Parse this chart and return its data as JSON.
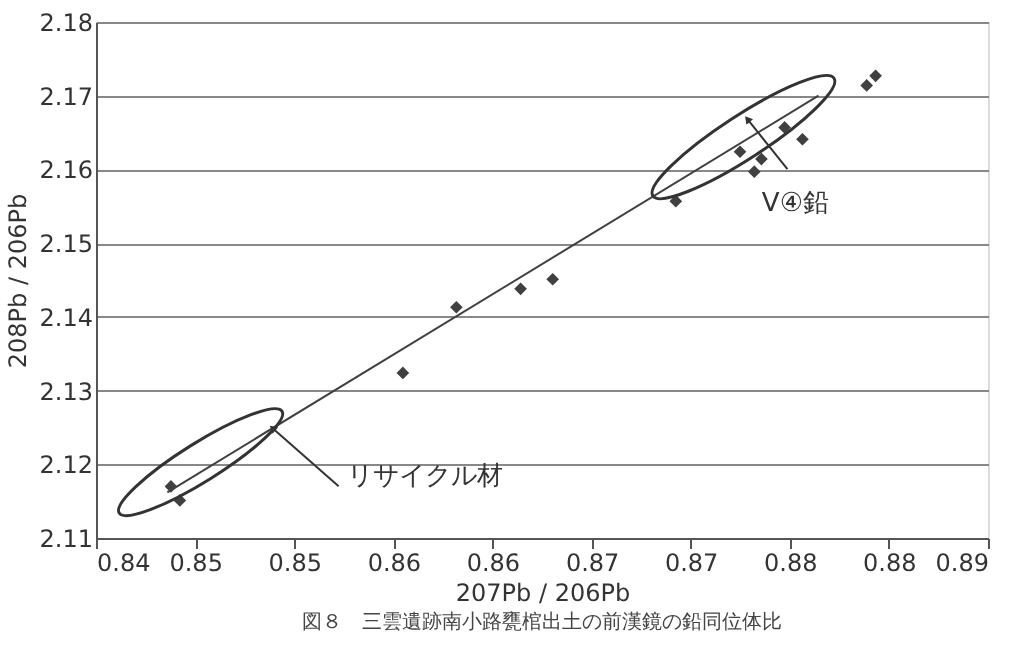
{
  "chart_data": {
    "type": "scatter",
    "xlabel": "207Pb / 206Pb",
    "ylabel": "208Pb / 206Pb",
    "series": [
      {
        "color": "#404040",
        "marker": "diamond",
        "x": [
          0.8442,
          0.8447,
          0.8572,
          0.8602,
          0.8638,
          0.8656,
          0.8725,
          0.8761,
          0.8769,
          0.8773,
          0.8786,
          0.8796,
          0.8832,
          0.8837
        ],
        "values": [
          2.117,
          2.1151,
          2.1324,
          2.1413,
          2.1438,
          2.1451,
          2.1557,
          2.1624,
          2.1597,
          2.1614,
          2.1657,
          2.1641,
          2.1714,
          2.1727
        ]
      },
      {
        "type": "line",
        "color": "#404040",
        "x": [
          0.844,
          0.8805
        ],
        "values": [
          2.1162,
          2.17
        ]
      }
    ],
    "xlim": [
      0.84,
      0.89
    ],
    "ylim": [
      2.11,
      2.18
    ],
    "xticks": [
      {
        "value": 0.84,
        "label": "0.84"
      },
      {
        "value": 0.84556,
        "label": "0.85"
      },
      {
        "value": 0.85111,
        "label": "0.85"
      },
      {
        "value": 0.85667,
        "label": "0.86"
      },
      {
        "value": 0.86222,
        "label": "0.86"
      },
      {
        "value": 0.86778,
        "label": "0.87"
      },
      {
        "value": 0.87333,
        "label": "0.87"
      },
      {
        "value": 0.87889,
        "label": "0.88"
      },
      {
        "value": 0.88444,
        "label": "0.88"
      },
      {
        "value": 0.89,
        "label": "0.89"
      }
    ],
    "yticks": [
      2.11,
      2.12,
      2.13,
      2.14,
      2.15,
      2.16,
      2.17,
      2.18
    ],
    "grid": "y",
    "annotations": [
      {
        "text": "リサイクル材",
        "x": 0.8499,
        "y": 2.1249
      },
      {
        "text": "V④鉛",
        "x": 0.8773,
        "y": 2.1614
      },
      "図８　三雲遺跡南小路甕棺出土の前漢鏡の鉛同位体比"
    ]
  }
}
